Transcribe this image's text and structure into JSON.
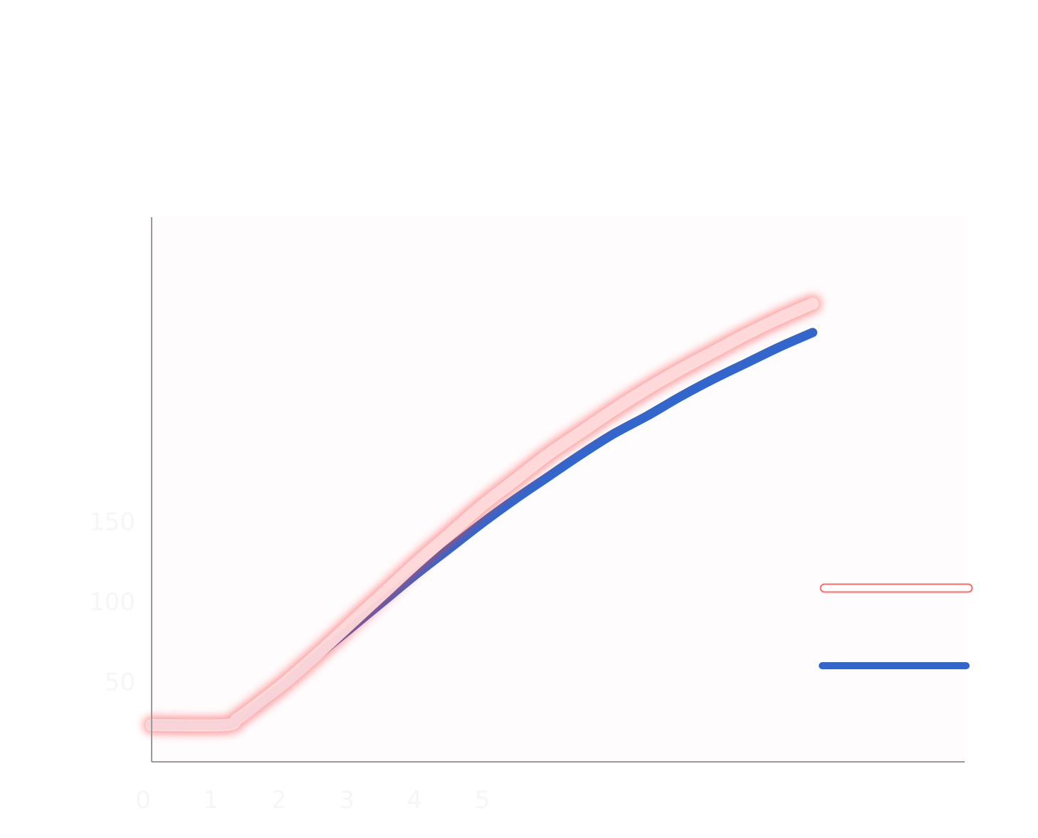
{
  "chart_data": {
    "type": "line",
    "title": "",
    "xlabel": "",
    "ylabel": "",
    "xlim": [
      0,
      12.3
    ],
    "ylim": [
      0,
      340
    ],
    "x_ticks": [
      0,
      1,
      2,
      3,
      4,
      5
    ],
    "x_tick_labels": [
      "0",
      "1",
      "2",
      "3",
      "4",
      "5"
    ],
    "y_ticks": [
      50,
      100,
      150
    ],
    "y_tick_labels": [
      "50",
      "100",
      "150"
    ],
    "grid": false,
    "legend": {
      "placement": "bottom-right"
    },
    "series": [
      {
        "color": "#ff3b3b",
        "points": [
          [
            0,
            23
          ],
          [
            1.1,
            23
          ],
          [
            1.3,
            27
          ],
          [
            1.5,
            33
          ],
          [
            2,
            49
          ],
          [
            2.5,
            67
          ],
          [
            3,
            86
          ],
          [
            3.5,
            105
          ],
          [
            4,
            124
          ],
          [
            4.5,
            142
          ],
          [
            5,
            160
          ],
          [
            5.5,
            176
          ],
          [
            6,
            192
          ],
          [
            6.5,
            206
          ],
          [
            7,
            220
          ],
          [
            7.5,
            233
          ],
          [
            8,
            245
          ],
          [
            8.5,
            256
          ],
          [
            9,
            267
          ],
          [
            9.5,
            277
          ],
          [
            10,
            286
          ]
        ]
      },
      {
        "color": "#3366cc",
        "points": [
          [
            0,
            23
          ],
          [
            1.1,
            23
          ],
          [
            1.3,
            27
          ],
          [
            1.5,
            32
          ],
          [
            2,
            48
          ],
          [
            2.5,
            66
          ],
          [
            3,
            83
          ],
          [
            3.5,
            100
          ],
          [
            4,
            117
          ],
          [
            4.5,
            133
          ],
          [
            5,
            149
          ],
          [
            5.5,
            164
          ],
          [
            6,
            178
          ],
          [
            6.5,
            192
          ],
          [
            7,
            205
          ],
          [
            7.5,
            216
          ],
          [
            8,
            228
          ],
          [
            8.5,
            239
          ],
          [
            9,
            249
          ],
          [
            9.5,
            259
          ],
          [
            10,
            268
          ]
        ]
      }
    ]
  }
}
